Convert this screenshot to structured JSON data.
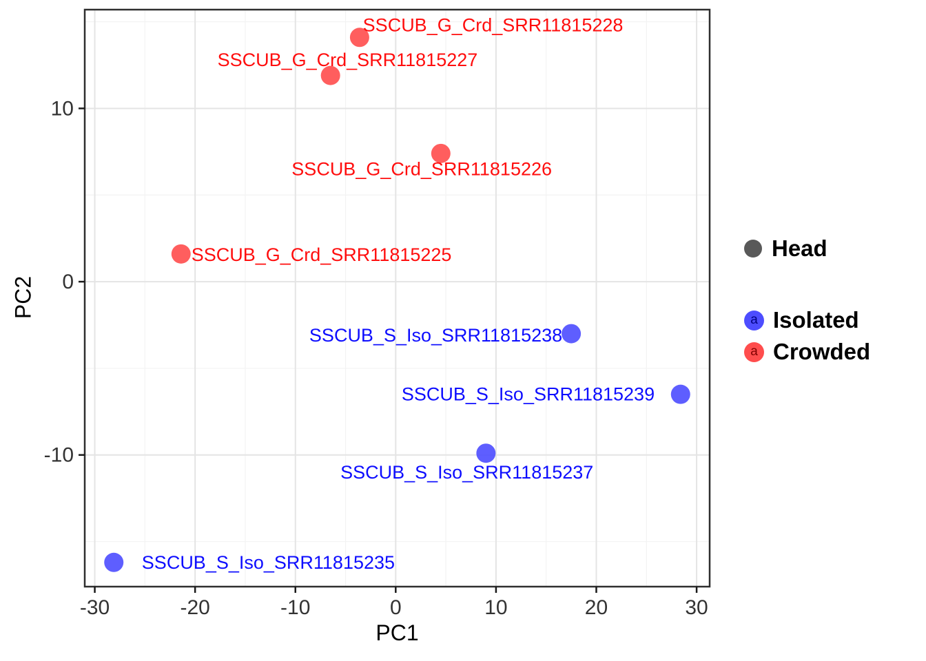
{
  "chart_data": {
    "type": "scatter",
    "title": "",
    "xlabel": "PC1",
    "ylabel": "PC2",
    "xlim": [
      -31,
      31.3
    ],
    "ylim": [
      -17.6,
      15.7
    ],
    "x_ticks": [
      -30,
      -20,
      -10,
      0,
      10,
      20,
      30
    ],
    "y_ticks": [
      -10,
      0,
      10
    ],
    "grid": {
      "major": true,
      "minor": true,
      "major_step": 10,
      "minor_step": 5
    },
    "legend_position": "right",
    "series": [
      {
        "name": "Crowded",
        "point_color": "#FF4D4D",
        "label_color": "#FF0D0D",
        "points": [
          {
            "x": -3.6,
            "y": 14.1,
            "label": "SSCUB_G_Crd_SRR11815228",
            "label_x": 9.7,
            "label_y": 14.8
          },
          {
            "x": -6.5,
            "y": 11.9,
            "label": "SSCUB_G_Crd_SRR11815227",
            "label_x": -4.8,
            "label_y": 12.8
          },
          {
            "x": 4.5,
            "y": 7.4,
            "label": "SSCUB_G_Crd_SRR11815226",
            "label_x": 2.6,
            "label_y": 6.5
          },
          {
            "x": -21.4,
            "y": 1.6,
            "label": "SSCUB_G_Crd_SRR11815225",
            "label_x": -7.4,
            "label_y": 1.55
          }
        ]
      },
      {
        "name": "Isolated",
        "point_color": "#4D4DFF",
        "label_color": "#0D0DFF",
        "points": [
          {
            "x": 17.5,
            "y": -3.0,
            "label": "SSCUB_S_Iso_SRR11815238",
            "label_x": 4.0,
            "label_y": -3.1
          },
          {
            "x": 28.4,
            "y": -6.5,
            "label": "SSCUB_S_Iso_SRR11815239",
            "label_x": 13.2,
            "label_y": -6.5
          },
          {
            "x": 9.0,
            "y": -9.9,
            "label": "SSCUB_S_Iso_SRR11815237",
            "label_x": 7.1,
            "label_y": -11.0
          },
          {
            "x": -28.1,
            "y": -16.2,
            "label": "SSCUB_S_Iso_SRR11815235",
            "label_x": -12.7,
            "label_y": -16.2
          }
        ]
      }
    ]
  },
  "legend": {
    "head": {
      "label": "Head",
      "color": "#595959"
    },
    "entries": [
      {
        "label": "Isolated",
        "color": "#4D4DFF",
        "key_text": "a",
        "key_text_color": "#000080"
      },
      {
        "label": "Crowded",
        "color": "#FF4D4D",
        "key_text": "a",
        "key_text_color": "#800000"
      }
    ]
  },
  "style_colors": {
    "background": "#FFFFFF",
    "panel_border": "#2E2E2E",
    "grid_major": "#E4E4E4",
    "grid_minor": "#F3F3F3",
    "tick": "#1A1A1A",
    "tick_label": "#333333",
    "axis_title": "#000000"
  }
}
